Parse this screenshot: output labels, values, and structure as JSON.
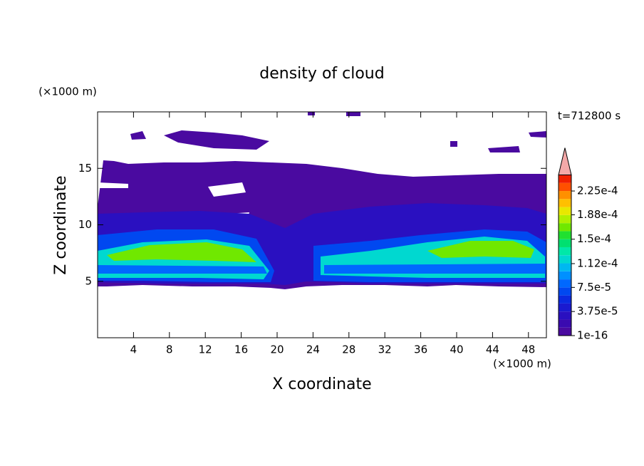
{
  "chart_data": {
    "type": "contour",
    "title": "density of cloud",
    "xlabel": "X coordinate",
    "ylabel": "Z coordinate",
    "xunit": "(×1000 m)",
    "yunit": "(×1000 m)",
    "time_label": "t=712800 s",
    "xlim": [
      0,
      50
    ],
    "ylim": [
      0,
      20
    ],
    "xticks": [
      4,
      8,
      12,
      16,
      20,
      24,
      28,
      32,
      36,
      40,
      44,
      48
    ],
    "yticks": [
      5,
      10,
      15
    ],
    "colorbar": {
      "clim": [
        1e-16,
        0.00025
      ],
      "ticks": [
        1e-16,
        {
          "value": 3.75e-05,
          "label": "3.75e-5"
        },
        {
          "value": 7.5e-05,
          "label": "7.5e-5"
        },
        {
          "value": 0.000112,
          "label": "1.12e-4"
        },
        {
          "value": 0.00015,
          "label": "1.5e-4"
        },
        {
          "value": 0.000188,
          "label": "1.88e-4"
        },
        {
          "value": 0.000225,
          "label": "2.25e-4"
        }
      ],
      "colors": [
        "#4a0aa0",
        "#3a0ab0",
        "#2a10c0",
        "#1a1ad0",
        "#0a2ae0",
        "#0048f0",
        "#0068ff",
        "#0090ff",
        "#00b8f0",
        "#00d8d0",
        "#00e8a8",
        "#00e070",
        "#20e030",
        "#70e800",
        "#b0f000",
        "#e8e800",
        "#ffc000",
        "#ff9000",
        "#ff5000",
        "#f02000"
      ],
      "extend_color": "#f4a8a8"
    }
  }
}
